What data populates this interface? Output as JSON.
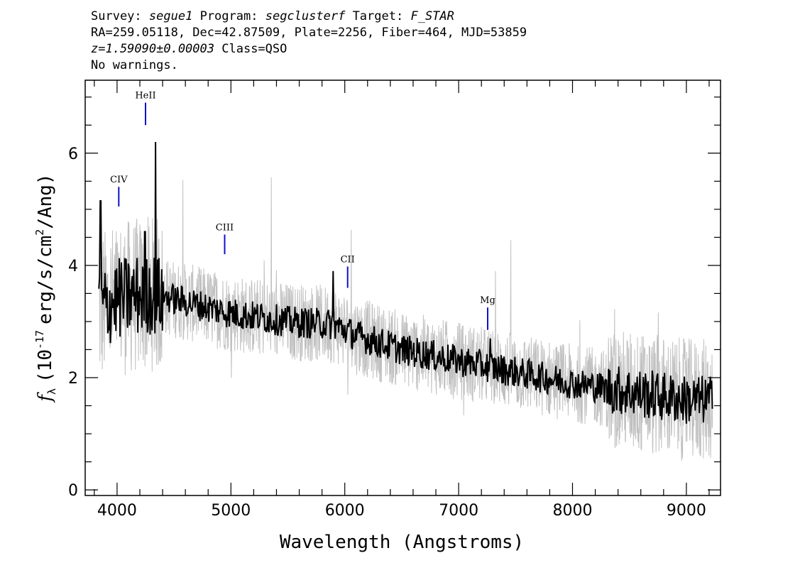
{
  "header": {
    "survey_label": "Survey:",
    "survey_value": "segue1",
    "program_label": "Program:",
    "program_value": "segclusterf",
    "target_label": "Target:",
    "target_value": "F_STAR",
    "line2": "RA=259.05118, Dec=42.87509, Plate=2256, Fiber=464, MJD=53859",
    "redshift": "z=1.59090±0.00003",
    "class_text": "Class=QSO",
    "warnings": "No warnings."
  },
  "colors": {
    "raw_flux": "#c0c0c0",
    "smoothed_flux": "#000000",
    "line_marker": "#1010c8",
    "axes": "#000000"
  },
  "chart_data": {
    "type": "line",
    "xlabel": "Wavelength (Angstroms)",
    "ylabel_prefix": "f",
    "ylabel_sub": "λ",
    "ylabel_open": "(10",
    "ylabel_exp": "-17",
    "ylabel_mid": "erg/s/cm",
    "ylabel_exp2": "2",
    "ylabel_close": "/Ang)",
    "xlim": [
      3720,
      9300
    ],
    "ylim": [
      -0.1,
      7.3
    ],
    "xticks": [
      4000,
      5000,
      6000,
      7000,
      8000,
      9000
    ],
    "yticks": [
      0,
      2,
      4,
      6
    ],
    "grid": false,
    "spectrum_range": [
      3840,
      9230
    ],
    "continuum": {
      "x": [
        3840,
        4000,
        4300,
        4600,
        5000,
        5500,
        5900,
        6100,
        6500,
        7000,
        7500,
        8000,
        8500,
        9000,
        9230
      ],
      "y": [
        3.2,
        3.4,
        3.5,
        3.35,
        3.15,
        3.0,
        2.95,
        2.75,
        2.5,
        2.3,
        2.1,
        1.9,
        1.75,
        1.6,
        1.6
      ]
    },
    "peaks": [
      {
        "x": 4340,
        "y": 6.2
      },
      {
        "x": 3855,
        "y": 5.15
      },
      {
        "x": 4245,
        "y": 4.6
      },
      {
        "x": 5900,
        "y": 3.9
      },
      {
        "x": 7280,
        "y": 2.7
      }
    ],
    "lines": [
      {
        "label": "CIV",
        "x": 4015,
        "y0": 5.05,
        "y1": 5.4
      },
      {
        "label": "HeII",
        "x": 4250,
        "y0": 6.5,
        "y1": 6.9
      },
      {
        "label": "CIII",
        "x": 4945,
        "y0": 4.2,
        "y1": 4.55
      },
      {
        "label": "CII",
        "x": 6025,
        "y0": 3.6,
        "y1": 3.98
      },
      {
        "label": "Mg",
        "x": 7255,
        "y0": 2.85,
        "y1": 3.25
      }
    ]
  }
}
